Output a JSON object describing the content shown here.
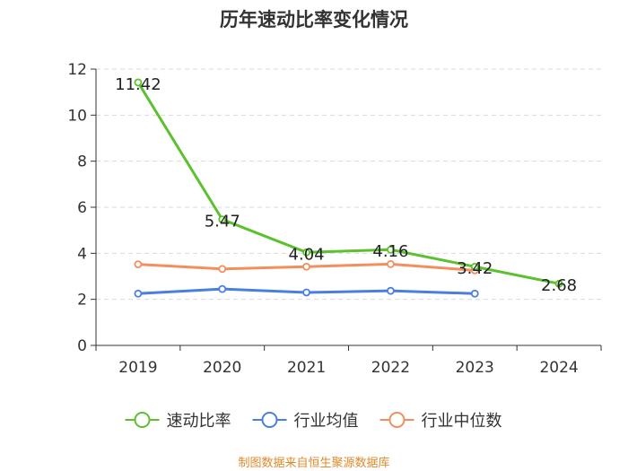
{
  "chart_data": {
    "type": "line",
    "title": "历年速动比率变化情况",
    "categories": [
      "2019",
      "2020",
      "2021",
      "2022",
      "2023",
      "2024"
    ],
    "series": [
      {
        "name": "速动比率",
        "color": "#5cc12e",
        "values": [
          11.42,
          5.47,
          4.04,
          4.16,
          3.42,
          2.68
        ],
        "show_labels": true
      },
      {
        "name": "行业均值",
        "color": "#4a7fe0",
        "values": [
          2.25,
          2.45,
          2.3,
          2.37,
          2.25,
          null
        ],
        "show_labels": false
      },
      {
        "name": "行业中位数",
        "color": "#f28e5f",
        "values": [
          3.52,
          3.32,
          3.42,
          3.53,
          3.26,
          null
        ],
        "show_labels": false
      }
    ],
    "data_labels": [
      "11.42",
      "5.47",
      "4.04",
      "4.16",
      "3.42",
      "2.68"
    ],
    "y_ticks": [
      "0",
      "2",
      "4",
      "6",
      "8",
      "10",
      "12"
    ],
    "ylim": [
      0,
      12
    ],
    "grid": true,
    "legend_position": "bottom"
  },
  "source": "制图数据来自恒生聚源数据库"
}
